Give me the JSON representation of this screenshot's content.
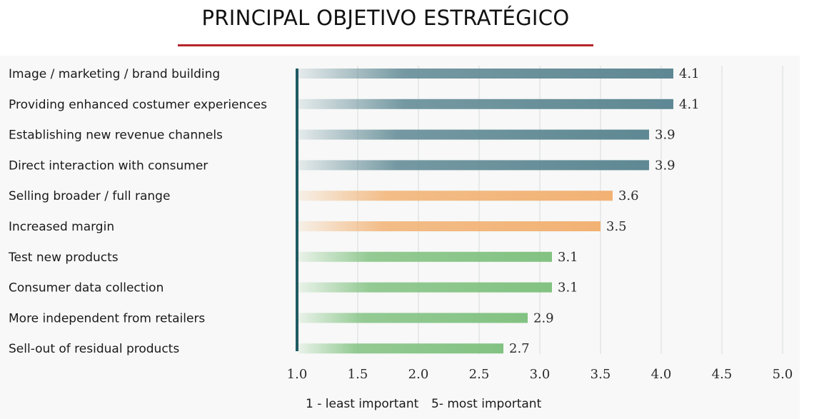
{
  "chart_data": {
    "type": "bar",
    "orientation": "horizontal",
    "title": "PRINCIPAL OBJETIVO ESTRATÉGICO",
    "categories": [
      "Image / marketing / brand building",
      "Providing enhanced costumer experiences",
      "Establishing new revenue channels",
      "Direct interaction with consumer",
      "Selling broader / full range",
      "Increased margin",
      "Test new products",
      "Consumer data collection",
      "More independent from retailers",
      "Sell-out of residual products"
    ],
    "values": [
      4.1,
      4.1,
      3.9,
      3.9,
      3.6,
      3.5,
      3.1,
      3.1,
      2.9,
      2.7
    ],
    "value_labels": [
      "4.1",
      "4.1",
      "3.9",
      "3.9",
      "3.6",
      "3.5",
      "3.1",
      "3.1",
      "2.9",
      "2.7"
    ],
    "bar_groups": [
      "teal",
      "teal",
      "teal",
      "teal",
      "orange",
      "orange",
      "green",
      "green",
      "green",
      "green"
    ],
    "colors": {
      "teal": "#5e8893",
      "orange": "#f2b274",
      "green": "#82c282",
      "axis": "#1f5a63",
      "title_rule": "#b5252b"
    },
    "xticks": [
      1.0,
      1.5,
      2.0,
      2.5,
      3.0,
      3.5,
      4.0,
      4.5,
      5.0
    ],
    "xtick_labels": [
      "1.0",
      "1.5",
      "2.0",
      "2.5",
      "3.0",
      "3.5",
      "4.0",
      "4.5",
      "5.0"
    ],
    "xlim": [
      1.0,
      5.0
    ],
    "grid": "vertical",
    "legend": [
      "1 - least important",
      "5- most important"
    ],
    "legend_position": "bottom"
  }
}
